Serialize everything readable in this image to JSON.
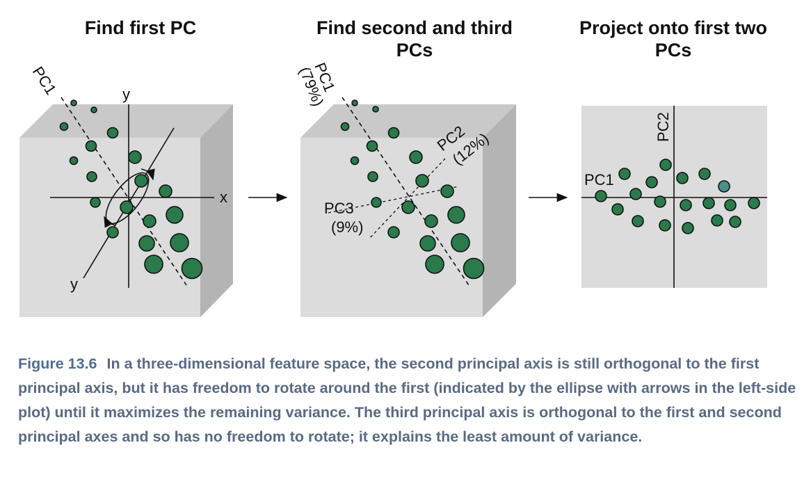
{
  "panels": [
    {
      "title": "Find first PC"
    },
    {
      "title": "Find second and third PCs"
    },
    {
      "title": "Project onto first two PCs"
    }
  ],
  "panel1": {
    "axis_x": "x",
    "axis_y_top": "y",
    "axis_y_bottom": "y",
    "pc1_label": "PC1"
  },
  "panel2": {
    "pc1_label": "PC1",
    "pc1_pct": "(79%)",
    "pc2_label": "PC2",
    "pc2_pct": "(12%)",
    "pc3_label": "PC3",
    "pc3_pct": "(9%)"
  },
  "panel3": {
    "pc1_label": "PC1",
    "pc2_label": "PC2"
  },
  "caption": {
    "figure_number": "Figure 13.6",
    "text": "In a three-dimensional feature space, the second principal axis is still orthogonal to the first principal axis, but it has freedom to rotate around the first (indicated by the ellipse with arrows in the left-side plot) until it maximizes the remaining variance. The third principal axis is orthogonal to the first and second principal axes and so has no freedom to rotate; it explains the least amount of variance."
  },
  "colors": {
    "point_fill": "#2b7a4b",
    "highlight_fill": "#4a8f8a",
    "cube_front": "#dcdcdc",
    "cube_top": "#c8c8c8",
    "cube_side": "#b6b6b6",
    "caption_text": "#5a6a85"
  }
}
